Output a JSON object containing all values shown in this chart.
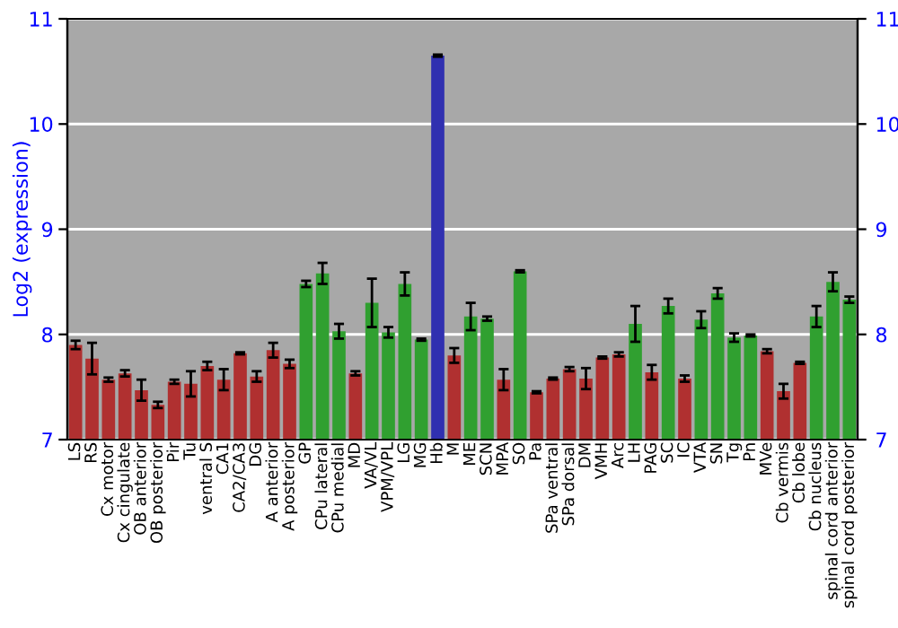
{
  "chart_data": {
    "type": "bar",
    "ylabel": "Log2 (expression)",
    "categories": [
      "LS",
      "RS",
      "Cx motor",
      "Cx cingulate",
      "OB anterior",
      "OB posterior",
      "Pir",
      "Tu",
      "ventral S",
      "CA1",
      "CA2/CA3",
      "DG",
      "A anterior",
      "A posterior",
      "GP",
      "CPu lateral",
      "CPu medial",
      "MD",
      "VA/VL",
      "VPM/VPL",
      "LG",
      "MG",
      "Hb",
      "M",
      "ME",
      "SCN",
      "MPA",
      "SO",
      "Pa",
      "SPa ventral",
      "SPa dorsal",
      "DM",
      "VMH",
      "Arc",
      "LH",
      "PAG",
      "SC",
      "IC",
      "VTA",
      "SN",
      "Tg",
      "Pn",
      "MVe",
      "Cb vermis",
      "Cb lobe",
      "Cb nucleus",
      "spinal cord anterior",
      "spinal cord posterior"
    ],
    "values": [
      7.9,
      7.77,
      7.57,
      7.63,
      7.47,
      7.33,
      7.55,
      7.53,
      7.7,
      7.57,
      7.82,
      7.6,
      7.85,
      7.72,
      8.48,
      8.58,
      8.03,
      7.63,
      8.3,
      8.02,
      8.48,
      7.95,
      10.65,
      7.8,
      8.17,
      8.15,
      7.57,
      8.6,
      7.45,
      7.58,
      7.67,
      7.58,
      7.78,
      7.81,
      8.1,
      7.64,
      8.27,
      7.58,
      8.14,
      8.39,
      7.97,
      7.99,
      7.84,
      7.46,
      7.73,
      8.17,
      8.5,
      8.33
    ],
    "errors": [
      0.04,
      0.15,
      0.02,
      0.03,
      0.1,
      0.03,
      0.02,
      0.12,
      0.04,
      0.1,
      0.01,
      0.05,
      0.07,
      0.04,
      0.03,
      0.1,
      0.07,
      0.02,
      0.23,
      0.05,
      0.11,
      0.01,
      0.01,
      0.07,
      0.13,
      0.02,
      0.1,
      0.01,
      0.01,
      0.01,
      0.02,
      0.1,
      0.01,
      0.02,
      0.17,
      0.07,
      0.07,
      0.03,
      0.08,
      0.05,
      0.04,
      0.01,
      0.02,
      0.07,
      0.01,
      0.1,
      0.09,
      0.03
    ],
    "colors": [
      "#b03030",
      "#b03030",
      "#b03030",
      "#b03030",
      "#b03030",
      "#b03030",
      "#b03030",
      "#b03030",
      "#b03030",
      "#b03030",
      "#b03030",
      "#b03030",
      "#b03030",
      "#b03030",
      "#30a030",
      "#30a030",
      "#30a030",
      "#b03030",
      "#30a030",
      "#30a030",
      "#30a030",
      "#30a030",
      "#3030b0",
      "#b03030",
      "#30a030",
      "#30a030",
      "#b03030",
      "#30a030",
      "#b03030",
      "#b03030",
      "#b03030",
      "#b03030",
      "#b03030",
      "#b03030",
      "#30a030",
      "#b03030",
      "#30a030",
      "#b03030",
      "#30a030",
      "#30a030",
      "#30a030",
      "#30a030",
      "#b03030",
      "#b03030",
      "#b03030",
      "#30a030",
      "#30a030",
      "#30a030"
    ],
    "ylim": [
      7,
      11
    ],
    "yticks": [
      7,
      8,
      9,
      10,
      11
    ],
    "y2lim": [
      7,
      11
    ],
    "y2ticks": [
      7,
      8,
      9,
      10,
      11
    ],
    "grid": "y"
  }
}
